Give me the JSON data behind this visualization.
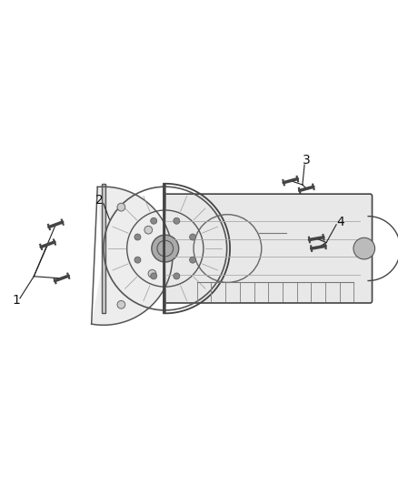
{
  "background_color": "#ffffff",
  "fig_width": 4.38,
  "fig_height": 5.33,
  "dpi": 100,
  "line_color": "#222222",
  "line_width": 0.8,
  "label_fontsize": 10,
  "label_color": "#111111"
}
